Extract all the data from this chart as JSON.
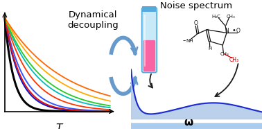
{
  "title_left": "Dynamical\ndecoupling",
  "title_right": "Noise spectrum",
  "xlabel_left": "T",
  "xlabel_right": "ω",
  "bg_color": "#ffffff",
  "decay_curves": [
    {
      "color": "#000000",
      "rate": 12.0,
      "lw": 2.2
    },
    {
      "color": "#1111cc",
      "rate": 7.0,
      "lw": 1.5
    },
    {
      "color": "#3355ff",
      "rate": 5.5,
      "lw": 1.4
    },
    {
      "color": "#dd1111",
      "rate": 6.5,
      "lw": 1.4
    },
    {
      "color": "#ff3300",
      "rate": 4.0,
      "lw": 1.3
    },
    {
      "color": "#00bbbb",
      "rate": 3.2,
      "lw": 1.3
    },
    {
      "color": "#22cc22",
      "rate": 2.8,
      "lw": 1.3
    },
    {
      "color": "#ffaa00",
      "rate": 2.2,
      "lw": 1.3
    },
    {
      "color": "#ff6600",
      "rate": 1.8,
      "lw": 1.3
    }
  ],
  "noise_spectrum_color": "#1a2acc",
  "noise_fill_color": "#afc8e8",
  "noise_bg_top": "#ddeeff",
  "noise_bg_bot": "#c8ddf5",
  "tube_body_color": "#c8eaf8",
  "tube_liquid_color": "#ff5599",
  "tube_rim_color": "#55aadd",
  "recycle_arrow_color": "#6699cc",
  "mol_color": "#111111",
  "mol_red": "#cc0000"
}
